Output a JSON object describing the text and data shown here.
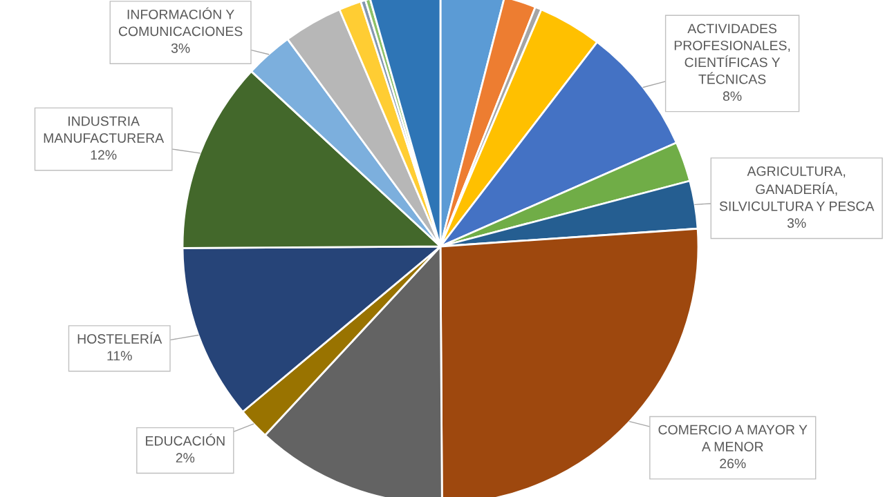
{
  "chart_data": {
    "type": "pie",
    "categories": [
      null,
      null,
      null,
      null,
      "ACTIVIDADES\nPROFESIONALES,\nCIENTÍFICAS Y\nTÉCNICAS",
      null,
      "AGRICULTURA,\nGANADERÍA,\nSILVICULTURA Y PESCA",
      "COMERCIO A MAYOR Y\nA MENOR",
      null,
      "EDUCACIÓN",
      "HOSTELERÍA",
      "INDUSTRIA\nMANUFACTURERA",
      "INFORMACIÓN Y\nCOMUNICACIONES",
      null,
      null,
      null,
      null,
      null
    ],
    "values": [
      4,
      2,
      0.4,
      4,
      8,
      2.5,
      3,
      26,
      12,
      2,
      11,
      12,
      3,
      3.7,
      1.4,
      0.3,
      0.3,
      4.4
    ],
    "value_labels": [
      null,
      null,
      null,
      null,
      "8%",
      null,
      "3%",
      "26%",
      null,
      "2%",
      "11%",
      "12%",
      "3%",
      null,
      null,
      null,
      null,
      null
    ],
    "colors": [
      "#5b9bd5",
      "#ed7d31",
      "#a5a5a5",
      "#ffc000",
      "#4472c4",
      "#70ad47",
      "#255e91",
      "#9e480e",
      "#636363",
      "#997300",
      "#264478",
      "#43682b",
      "#7cafdd",
      "#b7b7b7",
      "#ffcd33",
      "#8497b0",
      "#8cc168",
      "#2e75b6"
    ]
  }
}
